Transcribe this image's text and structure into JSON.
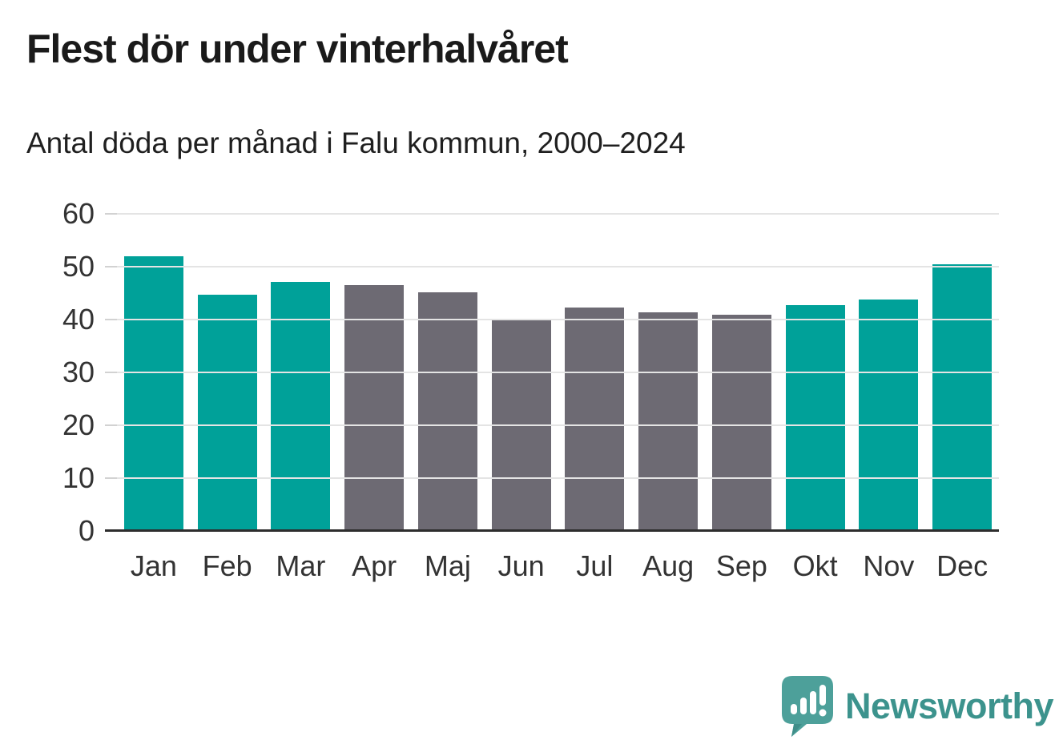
{
  "header": {
    "title": "Flest dör under vinterhalvåret",
    "subtitle": "Antal döda per månad i Falu kommun, 2000–2024"
  },
  "chart_data": {
    "type": "bar",
    "title": "Flest dör under vinterhalvåret",
    "subtitle": "Antal döda per månad i Falu kommun, 2000–2024",
    "categories": [
      "Jan",
      "Feb",
      "Mar",
      "Apr",
      "Maj",
      "Jun",
      "Jul",
      "Aug",
      "Sep",
      "Okt",
      "Nov",
      "Dec"
    ],
    "values": [
      52.0,
      44.7,
      47.1,
      46.5,
      45.1,
      40.1,
      42.3,
      41.3,
      40.9,
      42.8,
      43.8,
      50.5
    ],
    "bar_roles": [
      "accent",
      "accent",
      "accent",
      "neutral",
      "neutral",
      "neutral",
      "neutral",
      "neutral",
      "neutral",
      "accent",
      "accent",
      "accent"
    ],
    "palette": {
      "accent": "#00a199",
      "neutral": "#6d6a73"
    },
    "xlabel": "",
    "ylabel": "",
    "ylim": [
      0,
      60
    ],
    "yticks": [
      0,
      10,
      20,
      30,
      40,
      50,
      60
    ],
    "grid": true,
    "legend": null
  },
  "footer": {
    "brand": "Newsworthy",
    "logo_icon": "newsworthy-speech-bubble-chart-icon",
    "brand_color": "#3c938d",
    "mark_color": "#4da09a"
  }
}
